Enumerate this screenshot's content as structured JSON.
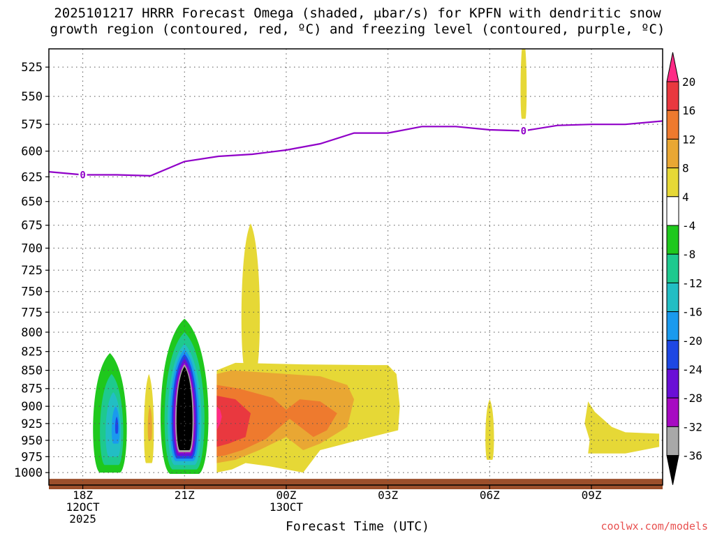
{
  "chart_data": {
    "type": "heatmap",
    "title_line1": "2025101217 HRRR Forecast Omega (shaded, μbar/s) for KPFN with dendritic snow",
    "title_line2": "growth region (contoured, red, ºC) and freezing level (contoured, purple, ºC)",
    "xlabel": "Forecast Time (UTC)",
    "credit": "coolwx.com/models",
    "y_axis": {
      "scale": "log-pressure",
      "range": [
        1020,
        510
      ],
      "ticks": [
        525,
        550,
        575,
        600,
        625,
        650,
        675,
        700,
        725,
        750,
        775,
        800,
        825,
        850,
        875,
        900,
        925,
        950,
        975,
        1000
      ]
    },
    "x_axis": {
      "range_hours": [
        -1,
        17.1
      ],
      "ticks": [
        {
          "hour": 0,
          "lines": [
            "18Z",
            "12OCT",
            "2025"
          ]
        },
        {
          "hour": 3,
          "lines": [
            "21Z"
          ]
        },
        {
          "hour": 6,
          "lines": [
            "00Z",
            "13OCT"
          ]
        },
        {
          "hour": 9,
          "lines": [
            "03Z"
          ]
        },
        {
          "hour": 12,
          "lines": [
            "06Z"
          ]
        },
        {
          "hour": 15,
          "lines": [
            "09Z"
          ]
        }
      ]
    },
    "colorbar": {
      "labels": [
        20,
        16,
        12,
        8,
        4,
        -4,
        -8,
        -12,
        -16,
        -20,
        -24,
        -28,
        -32,
        -36
      ],
      "bins": [
        "#ff2a86",
        "#e9383f",
        "#ee7a2e",
        "#e9a733",
        "#e6d836",
        "#ffffff",
        "#1fc81d",
        "#1ec98e",
        "#22bec4",
        "#1a9aee",
        "#1e47e4",
        "#6a0fd6",
        "#a70ac2",
        "#a8a8a8",
        "#000000"
      ]
    },
    "freezing_level": {
      "color": "#9000c8",
      "contour_label": "0",
      "label_hours": [
        0,
        13
      ],
      "series": [
        {
          "hour": -1,
          "pressure": 620
        },
        {
          "hour": 0,
          "pressure": 623
        },
        {
          "hour": 1,
          "pressure": 623
        },
        {
          "hour": 2,
          "pressure": 624
        },
        {
          "hour": 3,
          "pressure": 610
        },
        {
          "hour": 4,
          "pressure": 605
        },
        {
          "hour": 5,
          "pressure": 603
        },
        {
          "hour": 6,
          "pressure": 599
        },
        {
          "hour": 7,
          "pressure": 593
        },
        {
          "hour": 8,
          "pressure": 583
        },
        {
          "hour": 9,
          "pressure": 583
        },
        {
          "hour": 10,
          "pressure": 577
        },
        {
          "hour": 11,
          "pressure": 577
        },
        {
          "hour": 12,
          "pressure": 580
        },
        {
          "hour": 13,
          "pressure": 581
        },
        {
          "hour": 14,
          "pressure": 576
        },
        {
          "hour": 15,
          "pressure": 575
        },
        {
          "hour": 16,
          "pressure": 575
        },
        {
          "hour": 17.1,
          "pressure": 572
        }
      ]
    },
    "omega_regions": [
      {
        "color": "#1fc81d",
        "cx_h": 0.8,
        "hw_h": 0.55,
        "top_p": 827,
        "bot_p": 1000
      },
      {
        "color": "#1ec98e",
        "cx_h": 0.85,
        "hw_h": 0.38,
        "top_p": 855,
        "bot_p": 988
      },
      {
        "color": "#22bec4",
        "cx_h": 0.9,
        "hw_h": 0.25,
        "top_p": 880,
        "bot_p": 975
      },
      {
        "color": "#1a9aee",
        "cx_h": 0.97,
        "hw_h": 0.13,
        "top_p": 900,
        "bot_p": 955
      },
      {
        "color": "#1e47e4",
        "cx_h": 1.0,
        "hw_h": 0.05,
        "top_p": 915,
        "bot_p": 940
      },
      {
        "color": "#e6d836",
        "cx_h": 1.95,
        "hw_h": 0.16,
        "top_p": 855,
        "bot_p": 985
      },
      {
        "color": "#e9a733",
        "cx_h": 1.98,
        "hw_h": 0.07,
        "top_p": 900,
        "bot_p": 950
      },
      {
        "color": "#1fc81d",
        "cx_h": 3.0,
        "hw_h": 0.78,
        "top_p": 783,
        "bot_p": 1002
      },
      {
        "color": "#1ec98e",
        "cx_h": 3.0,
        "hw_h": 0.65,
        "top_p": 800,
        "bot_p": 995
      },
      {
        "color": "#22bec4",
        "cx_h": 3.0,
        "hw_h": 0.55,
        "top_p": 815,
        "bot_p": 988
      },
      {
        "color": "#1a9aee",
        "cx_h": 3.0,
        "hw_h": 0.48,
        "top_p": 822,
        "bot_p": 982
      },
      {
        "color": "#1e47e4",
        "cx_h": 3.0,
        "hw_h": 0.42,
        "top_p": 828,
        "bot_p": 978
      },
      {
        "color": "#6a0fd6",
        "cx_h": 3.0,
        "hw_h": 0.37,
        "top_p": 834,
        "bot_p": 974
      },
      {
        "color": "#a70ac2",
        "cx_h": 3.0,
        "hw_h": 0.33,
        "top_p": 840,
        "bot_p": 970
      },
      {
        "color": "#a8a8a8",
        "cx_h": 3.0,
        "hw_h": 0.3,
        "top_p": 842,
        "bot_p": 968
      },
      {
        "color": "#000000",
        "cx_h": 3.0,
        "hw_h": 0.26,
        "top_p": 845,
        "bot_p": 965
      },
      {
        "color": "#e6d836",
        "cx_h": 4.95,
        "hw_h": 0.3,
        "top_p": 673,
        "bot_p": 850
      },
      {
        "color": "#e6d836",
        "cx_h": 13.0,
        "hw_h": 0.1,
        "top_p": 500,
        "bot_p": 570
      },
      {
        "color": "#e6d836",
        "cx_h": 12.0,
        "hw_h": 0.14,
        "top_p": 890,
        "bot_p": 980
      }
    ],
    "omega_polygons": [
      {
        "color": "#e6d836",
        "points": [
          [
            3.95,
            1000
          ],
          [
            3.95,
            850
          ],
          [
            4.5,
            840
          ],
          [
            6.5,
            842
          ],
          [
            8.5,
            843
          ],
          [
            9.0,
            843
          ],
          [
            9.25,
            855
          ],
          [
            9.35,
            900
          ],
          [
            9.3,
            935
          ],
          [
            8.5,
            945
          ],
          [
            7.0,
            965
          ],
          [
            6.5,
            1000
          ],
          [
            5.5,
            990
          ],
          [
            4.8,
            985
          ],
          [
            4.4,
            995
          ]
        ]
      },
      {
        "color": "#e9a733",
        "points": [
          [
            3.95,
            985
          ],
          [
            3.95,
            855
          ],
          [
            4.4,
            850
          ],
          [
            6.0,
            855
          ],
          [
            7.0,
            858
          ],
          [
            7.8,
            870
          ],
          [
            8.0,
            890
          ],
          [
            7.8,
            930
          ],
          [
            7.0,
            955
          ],
          [
            6.5,
            965
          ],
          [
            6.0,
            945
          ],
          [
            5.2,
            965
          ],
          [
            4.5,
            980
          ]
        ]
      },
      {
        "color": "#ee7a2e",
        "points": [
          [
            3.95,
            975
          ],
          [
            3.95,
            870
          ],
          [
            4.6,
            875
          ],
          [
            5.6,
            888
          ],
          [
            6.0,
            905
          ],
          [
            6.4,
            890
          ],
          [
            7.0,
            893
          ],
          [
            7.5,
            910
          ],
          [
            7.2,
            935
          ],
          [
            6.8,
            945
          ],
          [
            6.1,
            918
          ],
          [
            5.4,
            948
          ],
          [
            4.7,
            965
          ],
          [
            4.2,
            973
          ]
        ]
      },
      {
        "color": "#e9383f",
        "points": [
          [
            3.95,
            960
          ],
          [
            3.95,
            885
          ],
          [
            4.5,
            890
          ],
          [
            4.95,
            910
          ],
          [
            4.8,
            945
          ],
          [
            4.3,
            955
          ]
        ]
      },
      {
        "color": "#ff2a86",
        "points": [
          [
            3.95,
            935
          ],
          [
            4.05,
            925
          ],
          [
            4.1,
            915
          ],
          [
            4.05,
            905
          ],
          [
            3.95,
            900
          ]
        ]
      },
      {
        "color": "#e6d836",
        "points": [
          [
            14.9,
            893
          ],
          [
            15.1,
            908
          ],
          [
            15.6,
            930
          ],
          [
            16.0,
            938
          ],
          [
            17.0,
            940
          ],
          [
            17.0,
            960
          ],
          [
            16.0,
            970
          ],
          [
            14.9,
            970
          ],
          [
            14.95,
            950
          ],
          [
            14.8,
            925
          ]
        ]
      }
    ],
    "terrain": {
      "color": "#9c4f2b",
      "pressure_top": 1010
    }
  }
}
